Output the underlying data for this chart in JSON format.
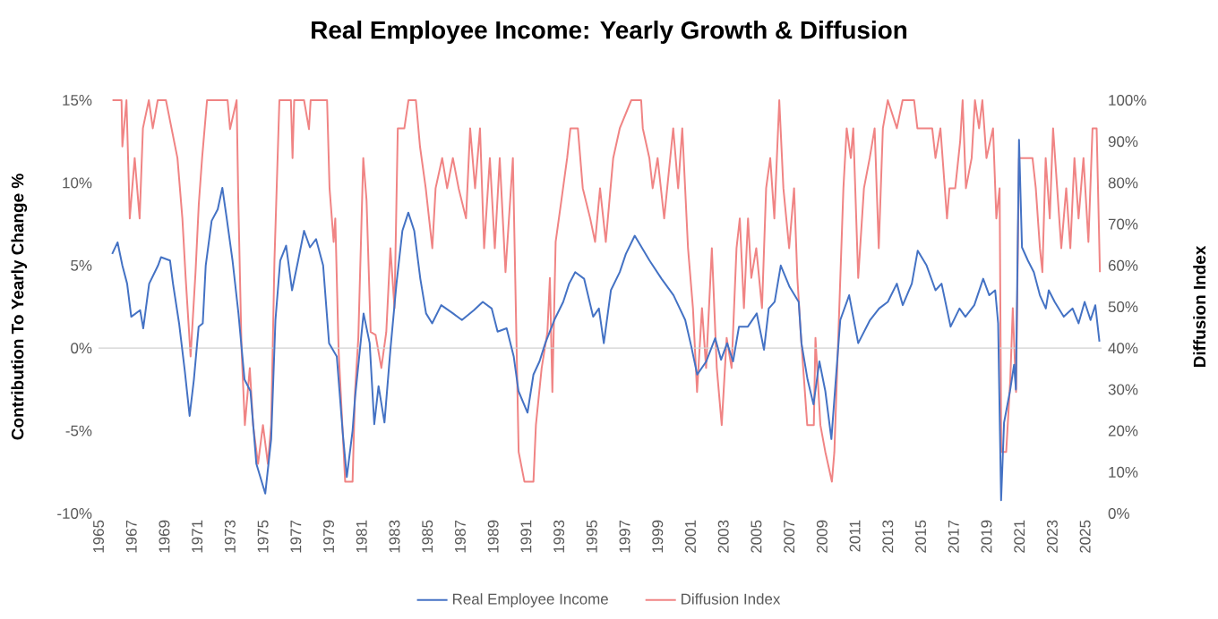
{
  "chart_data": {
    "type": "line",
    "title": "Real Employee Income: Yearly Growth & Diffusion",
    "ylabel": "Contribution To Yearly Change %",
    "y2label": "Diffusion Index",
    "xlim": [
      1965,
      2026
    ],
    "xticks": [
      1965,
      1967,
      1969,
      1971,
      1973,
      1975,
      1977,
      1979,
      1981,
      1983,
      1985,
      1987,
      1989,
      1991,
      1993,
      1995,
      1997,
      1999,
      2001,
      2003,
      2005,
      2007,
      2009,
      2011,
      2013,
      2015,
      2017,
      2019,
      2021,
      2023,
      2025
    ],
    "ylim": [
      -10,
      15
    ],
    "yticks": [
      {
        "value": -10,
        "label": "-10%"
      },
      {
        "value": -5,
        "label": "-5%"
      },
      {
        "value": 0,
        "label": "0%"
      },
      {
        "value": 5,
        "label": "5%"
      },
      {
        "value": 10,
        "label": "10%"
      },
      {
        "value": 15,
        "label": "15%"
      }
    ],
    "y2lim": [
      0,
      100
    ],
    "y2ticks": [
      {
        "value": 0,
        "label": "0%"
      },
      {
        "value": 10,
        "label": "10%"
      },
      {
        "value": 20,
        "label": "20%"
      },
      {
        "value": 30,
        "label": "30%"
      },
      {
        "value": 40,
        "label": "40%"
      },
      {
        "value": 50,
        "label": "50%"
      },
      {
        "value": 60,
        "label": "60%"
      },
      {
        "value": 70,
        "label": "70%"
      },
      {
        "value": 80,
        "label": "80%"
      },
      {
        "value": 90,
        "label": "90%"
      },
      {
        "value": 100,
        "label": "100%"
      }
    ],
    "legend": "bottom",
    "series": [
      {
        "name": "Real Employee Income",
        "color": "#4472c4",
        "x": [
          1965.83,
          1966.16,
          1966.45,
          1966.74,
          1966.99,
          1967.53,
          1967.72,
          1968.08,
          1968.62,
          1968.8,
          1969.35,
          1969.53,
          1969.9,
          1970.25,
          1970.54,
          1970.8,
          1971.09,
          1971.34,
          1971.52,
          1971.88,
          1972.25,
          1972.53,
          1972.79,
          1973.15,
          1973.51,
          1973.88,
          1974.24,
          1974.6,
          1975.14,
          1975.5,
          1975.76,
          1976.05,
          1976.41,
          1976.77,
          1977.14,
          1977.5,
          1977.86,
          1978.23,
          1978.66,
          1979.02,
          1979.49,
          1979.86,
          1980.1,
          1980.45,
          1980.6,
          1981.12,
          1981.49,
          1981.77,
          1982.03,
          1982.39,
          1982.75,
          1983.12,
          1983.48,
          1983.84,
          1984.2,
          1984.57,
          1984.92,
          1985.29,
          1985.84,
          1986.56,
          1987.1,
          1987.83,
          1988.37,
          1988.91,
          1989.27,
          1989.82,
          1990.25,
          1990.54,
          1991.09,
          1991.45,
          1991.82,
          1992.17,
          1992.72,
          1993.26,
          1993.62,
          1993.99,
          1994.53,
          1995.08,
          1995.43,
          1995.73,
          1996.16,
          1996.7,
          1997.07,
          1997.61,
          1998.51,
          1999.24,
          1999.97,
          2000.68,
          2001.05,
          2001.41,
          2001.96,
          2002.5,
          2002.86,
          2003.23,
          2003.59,
          2003.95,
          2004.49,
          2005.03,
          2005.47,
          2005.76,
          2006.12,
          2006.49,
          2007.03,
          2007.58,
          2007.75,
          2008.12,
          2008.48,
          2008.84,
          2009.2,
          2009.57,
          2009.92,
          2010.11,
          2010.65,
          2011.2,
          2011.92,
          2012.47,
          2013.0,
          2013.55,
          2013.91,
          2014.46,
          2014.82,
          2015.36,
          2015.9,
          2016.27,
          2016.82,
          2017.36,
          2017.72,
          2018.26,
          2018.8,
          2019.17,
          2019.53,
          2019.71,
          2019.89,
          2020.07,
          2020.43,
          2020.68,
          2020.79,
          2020.98,
          2021.16,
          2021.52,
          2021.88,
          2022.25,
          2022.61,
          2022.79,
          2023.15,
          2023.7,
          2024.24,
          2024.6,
          2024.97,
          2025.33,
          2025.62,
          2025.87
        ],
        "values": [
          5.7,
          6.4,
          5.0,
          3.9,
          1.9,
          2.3,
          1.2,
          3.9,
          5.0,
          5.5,
          5.3,
          3.9,
          1.5,
          -1.4,
          -4.1,
          -1.9,
          1.3,
          1.5,
          5.0,
          7.7,
          8.4,
          9.7,
          7.9,
          5.3,
          2.1,
          -1.9,
          -2.6,
          -7.0,
          -8.8,
          -5.5,
          1.7,
          5.3,
          6.2,
          3.5,
          5.3,
          7.1,
          6.1,
          6.6,
          5.0,
          0.3,
          -0.5,
          -5.2,
          -7.8,
          -5.0,
          -3.0,
          2.1,
          0.3,
          -4.6,
          -2.3,
          -4.5,
          -0.1,
          3.9,
          7.1,
          8.2,
          7.1,
          4.2,
          2.1,
          1.5,
          2.6,
          2.1,
          1.7,
          2.3,
          2.8,
          2.4,
          1.0,
          1.2,
          -0.5,
          -2.6,
          -3.9,
          -1.6,
          -0.8,
          0.3,
          1.7,
          2.8,
          3.9,
          4.6,
          4.2,
          1.9,
          2.4,
          0.3,
          3.5,
          4.6,
          5.7,
          6.8,
          5.3,
          4.2,
          3.2,
          1.7,
          0.1,
          -1.6,
          -0.8,
          0.6,
          -0.7,
          0.3,
          -0.8,
          1.3,
          1.3,
          2.1,
          -0.1,
          2.4,
          2.8,
          5.0,
          3.7,
          2.8,
          0.3,
          -1.9,
          -3.4,
          -0.8,
          -2.6,
          -5.5,
          -0.8,
          1.7,
          3.2,
          0.3,
          1.7,
          2.4,
          2.8,
          3.9,
          2.6,
          3.9,
          5.9,
          5.0,
          3.5,
          3.9,
          1.3,
          2.4,
          1.9,
          2.6,
          4.2,
          3.2,
          3.5,
          1.5,
          -9.2,
          -4.5,
          -2.6,
          -1.0,
          -2.5,
          12.6,
          6.1,
          5.3,
          4.6,
          3.2,
          2.4,
          3.5,
          2.8,
          1.9,
          2.4,
          1.5,
          2.8,
          1.7,
          2.6,
          0.4
        ]
      },
      {
        "name": "Diffusion Index",
        "color": "#f08484",
        "axis": "y2",
        "x": [
          1965.85,
          1966.4,
          1966.45,
          1966.7,
          1966.9,
          1967.2,
          1967.5,
          1967.7,
          1968.06,
          1968.3,
          1968.6,
          1969.1,
          1969.8,
          1970.1,
          1970.3,
          1970.6,
          1970.9,
          1971.1,
          1971.3,
          1971.6,
          1972.85,
          1973.0,
          1973.4,
          1973.5,
          1973.7,
          1973.9,
          1974.2,
          1974.4,
          1974.7,
          1975.0,
          1975.3,
          1975.5,
          1975.7,
          1976.0,
          1976.7,
          1976.8,
          1976.9,
          1977.5,
          1977.8,
          1977.9,
          1978.9,
          1979.05,
          1979.3,
          1979.4,
          1979.6,
          1980.0,
          1980.45,
          1980.6,
          1980.8,
          1981.1,
          1981.3,
          1981.55,
          1981.85,
          1982.2,
          1982.5,
          1982.75,
          1983.0,
          1983.2,
          1983.6,
          1983.85,
          1984.3,
          1984.55,
          1984.9,
          1985.3,
          1985.5,
          1985.9,
          1986.2,
          1986.55,
          1986.9,
          1987.35,
          1987.6,
          1987.9,
          1988.2,
          1988.45,
          1988.8,
          1989.1,
          1989.4,
          1989.75,
          1990.2,
          1990.55,
          1990.9,
          1991.45,
          1991.6,
          1991.95,
          1992.3,
          1992.45,
          1992.6,
          1992.8,
          1993.15,
          1993.5,
          1993.7,
          1994.15,
          1994.45,
          1994.9,
          1995.2,
          1995.5,
          1995.85,
          1996.3,
          1996.7,
          1997.4,
          1998.0,
          1998.1,
          1998.5,
          1998.7,
          1999.0,
          1999.4,
          1999.95,
          2000.25,
          2000.5,
          2000.85,
          2001.15,
          2001.4,
          2001.7,
          2001.95,
          2002.3,
          2002.6,
          2002.9,
          2003.2,
          2003.5,
          2003.8,
          2004.0,
          2004.25,
          2004.5,
          2004.7,
          2005.0,
          2005.35,
          2005.6,
          2005.85,
          2006.1,
          2006.4,
          2006.65,
          2007.0,
          2007.3,
          2007.5,
          2007.7,
          2008.1,
          2008.5,
          2008.6,
          2008.9,
          2009.2,
          2009.6,
          2009.75,
          2010.05,
          2010.3,
          2010.5,
          2010.75,
          2010.9,
          2011.2,
          2011.55,
          2011.9,
          2012.2,
          2012.45,
          2012.7,
          2013.0,
          2013.55,
          2013.9,
          2014.6,
          2014.8,
          2015.7,
          2015.9,
          2016.2,
          2016.6,
          2016.75,
          2017.1,
          2017.4,
          2017.55,
          2017.75,
          2018.1,
          2018.3,
          2018.55,
          2018.75,
          2019.0,
          2019.4,
          2019.6,
          2019.8,
          2019.9,
          2020.2,
          2020.45,
          2020.6,
          2020.8,
          2020.98,
          2021.8,
          2022.0,
          2022.25,
          2022.4,
          2022.6,
          2022.85,
          2023.05,
          2023.3,
          2023.55,
          2023.85,
          2024.1,
          2024.35,
          2024.6,
          2024.9,
          2025.2,
          2025.45,
          2025.7,
          2025.9
        ],
        "values": [
          100,
          100,
          88.8,
          100,
          71.4,
          86,
          71.4,
          93.2,
          100,
          93.2,
          100,
          100,
          86,
          71.4,
          57,
          38,
          58.4,
          75,
          86,
          100,
          100,
          93,
          100,
          75.8,
          39.6,
          21.4,
          35.2,
          21.4,
          12,
          21.4,
          12,
          21.4,
          61.3,
          100,
          100,
          86,
          100,
          100,
          93,
          100,
          100,
          78.7,
          65.7,
          71.4,
          39.6,
          7.7,
          7.7,
          29.4,
          42.5,
          86,
          75.8,
          43.9,
          43.2,
          35.2,
          43.9,
          64.2,
          49.7,
          93.2,
          93.2,
          100,
          100,
          88.8,
          78.7,
          64.2,
          78.7,
          86,
          78.7,
          86,
          78.7,
          71.4,
          93.2,
          78.7,
          93.2,
          64.2,
          86,
          64.2,
          86,
          58.4,
          86,
          14.9,
          7.7,
          7.7,
          21.4,
          35.2,
          43.9,
          57,
          29.4,
          65.7,
          75.8,
          86,
          93.2,
          93.2,
          78.7,
          71.4,
          65.7,
          78.7,
          65.7,
          86,
          93.2,
          100,
          100,
          93.2,
          86,
          78.7,
          86,
          71.4,
          93.2,
          78.7,
          93.2,
          64.2,
          49.7,
          29.4,
          49.7,
          35.2,
          64.2,
          35.2,
          21.4,
          42.5,
          35.2,
          64.2,
          71.4,
          49.7,
          71.4,
          57,
          64.2,
          49.7,
          78.7,
          86,
          71.4,
          100,
          78.7,
          64.2,
          78.7,
          57,
          43.9,
          21.4,
          21.4,
          42.5,
          21.4,
          14.9,
          7.7,
          14.9,
          49.7,
          78.7,
          93.2,
          86,
          93.2,
          57,
          78.7,
          86,
          93.2,
          64.2,
          93.2,
          100,
          93.2,
          100,
          100,
          93.2,
          93.2,
          86,
          93.2,
          71.4,
          78.7,
          78.7,
          90,
          100,
          78.7,
          86,
          100,
          93.2,
          100,
          86,
          93.2,
          71.4,
          78.7,
          14.9,
          14.9,
          32.4,
          49.7,
          29.4,
          86,
          86,
          78.7,
          64.2,
          58.4,
          86,
          71.4,
          93.2,
          78.7,
          64.2,
          78.7,
          64.2,
          86,
          71.4,
          86,
          65.7,
          93.2,
          93.2,
          58.4
        ]
      }
    ]
  }
}
